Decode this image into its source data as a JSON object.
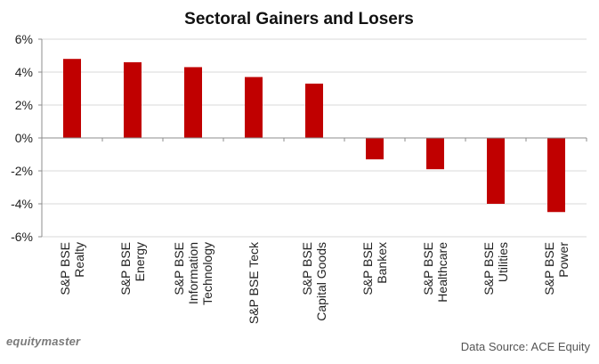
{
  "chart_data": {
    "type": "bar",
    "title": "Sectoral Gainers and Losers",
    "categories": [
      [
        "S&P BSE",
        "Realty"
      ],
      [
        "S&P BSE",
        "Energy"
      ],
      [
        "S&P BSE",
        "Information",
        "Technology"
      ],
      [
        "S&P BSE Teck"
      ],
      [
        "S&P BSE",
        "Capital Goods"
      ],
      [
        "S&P BSE",
        "Bankex"
      ],
      [
        "S&P BSE",
        "Healthcare"
      ],
      [
        "S&P BSE",
        "Utilities"
      ],
      [
        "S&P BSE",
        "Power"
      ]
    ],
    "values": [
      4.8,
      4.6,
      4.3,
      3.7,
      3.3,
      -1.3,
      -1.9,
      -4.0,
      -4.5
    ],
    "unit": "%",
    "ylim": [
      -6,
      6
    ],
    "yticks": [
      6,
      4,
      2,
      0,
      -2,
      -4,
      -6
    ],
    "ytick_labels": [
      "6%",
      "4%",
      "2%",
      "0%",
      "-2%",
      "-4%",
      "-6%"
    ],
    "grid": true,
    "bar_color": "#c00000"
  },
  "footer": {
    "brand": "equitymaster",
    "source": "Data Source: ACE Equity"
  }
}
